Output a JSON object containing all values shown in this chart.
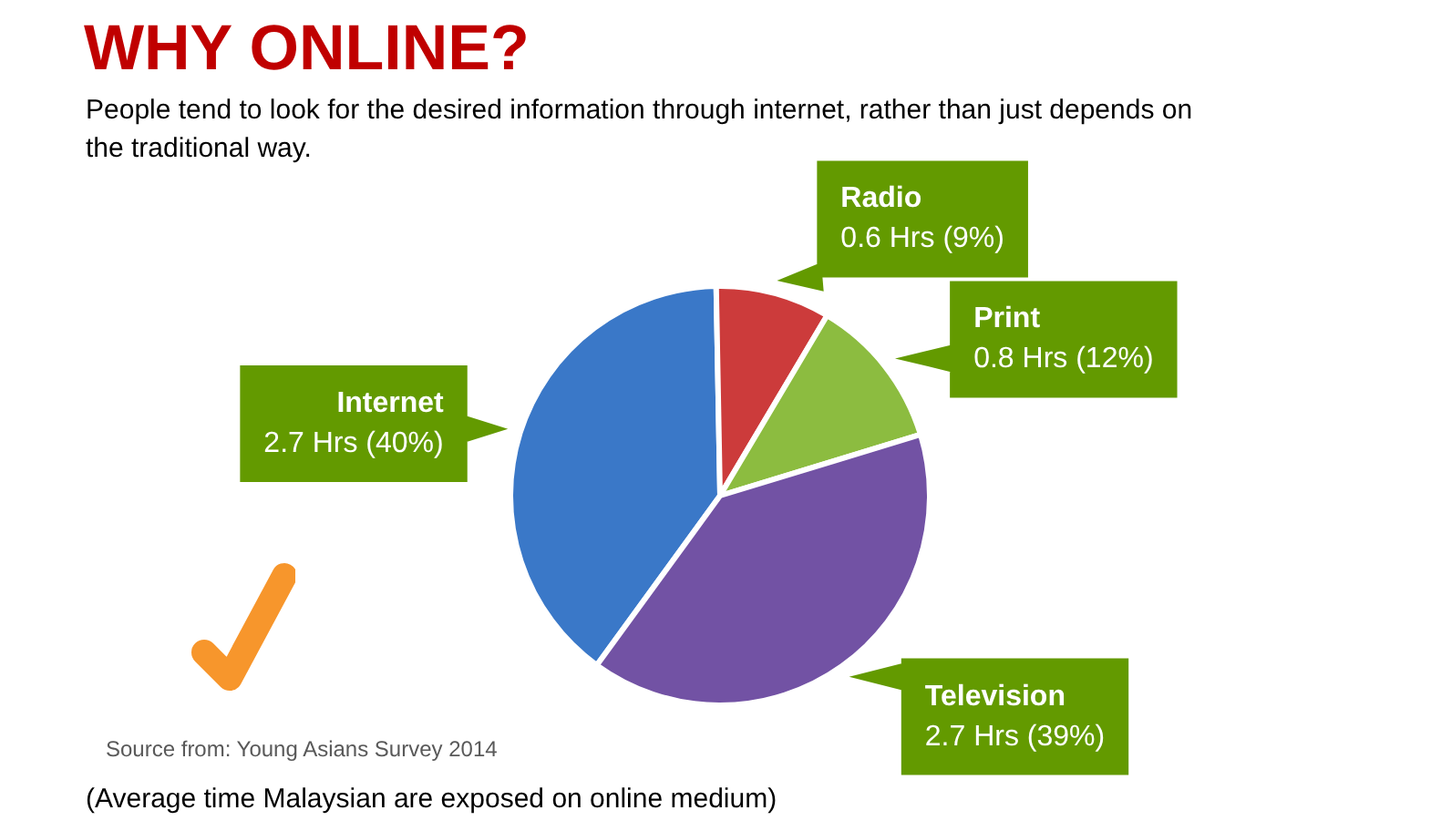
{
  "chart_data": {
    "type": "pie",
    "title": "WHY ONLINE?",
    "subtitle": "People tend to look for the desired information through internet, rather than just depends on the traditional way.",
    "categories": [
      "Internet",
      "Radio",
      "Print",
      "Television"
    ],
    "values": [
      2.7,
      0.6,
      0.8,
      2.7
    ],
    "value_labels": [
      "2.7 Hrs (40%)",
      "0.6 Hrs (9%)",
      "0.8 Hrs (12%)",
      "2.7 Hrs (39%)"
    ],
    "colors": [
      "#3a78c8",
      "#cc3b3b",
      "#8cbc40",
      "#7252a4"
    ],
    "annotations": [
      "Source from: Young Asians Survey 2014",
      "(Average time Malaysian are exposed on online medium)"
    ]
  }
}
